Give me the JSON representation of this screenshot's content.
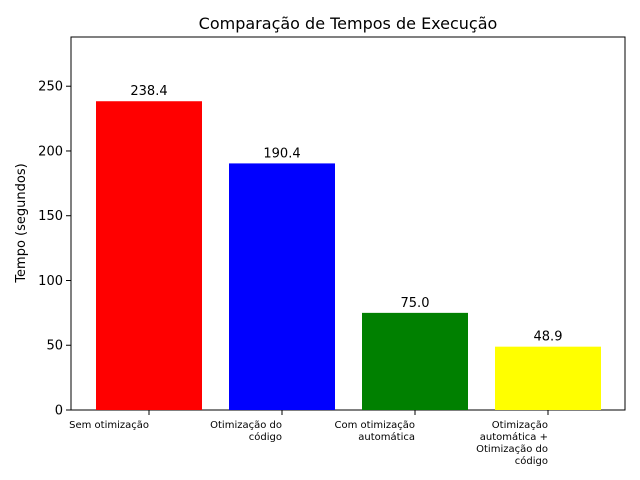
{
  "chart_data": {
    "type": "bar",
    "title": "Comparação de Tempos de Execução",
    "xlabel": "",
    "ylabel": "Tempo (segundos)",
    "ylim": [
      0,
      288
    ],
    "yticks": [
      0,
      50,
      100,
      150,
      200,
      250
    ],
    "categories": [
      [
        "Sem otimização"
      ],
      [
        "Otimização do",
        "código"
      ],
      [
        "Com otimização",
        "automática"
      ],
      [
        "Otimização",
        "automática +",
        "Otimização do",
        "código"
      ]
    ],
    "values": [
      238.4,
      190.4,
      75.0,
      48.9
    ],
    "value_labels": [
      "238.4",
      "190.4",
      "75.0",
      "48.9"
    ],
    "colors": [
      "#ff0000",
      "#0000ff",
      "#008000",
      "#ffff00"
    ],
    "grid": false,
    "legend": "none"
  }
}
